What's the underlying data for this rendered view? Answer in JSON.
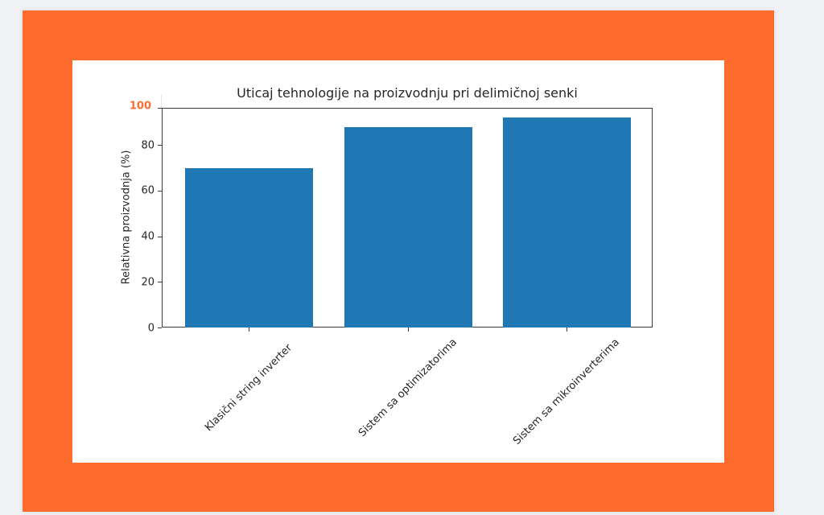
{
  "colors": {
    "frame": "#ff6d2e",
    "background": "#f1f2f6",
    "panel": "#ffffff",
    "bar": "#1f77b4",
    "highlight_tick": "#ff6d2e"
  },
  "chart_data": {
    "type": "bar",
    "title": "Uticaj tehnologije na proizvodnju pri delimičnoj senki",
    "xlabel": "",
    "ylabel": "Relativna proizvodnja (%)",
    "categories": [
      "Klasični string inverter",
      "Sistem sa optimizatorima",
      "Sistem sa mikroinverterima"
    ],
    "values": [
      70,
      88,
      92
    ],
    "ylim": [
      0,
      96
    ],
    "yticks": [
      "0",
      "20",
      "40",
      "60",
      "80"
    ],
    "annotations": [
      {
        "text": "100",
        "position": "top of y-axis",
        "color": "#ff6d2e",
        "bold": true
      }
    ],
    "x_tick_rotation": 45,
    "grid": false,
    "legend": null
  }
}
